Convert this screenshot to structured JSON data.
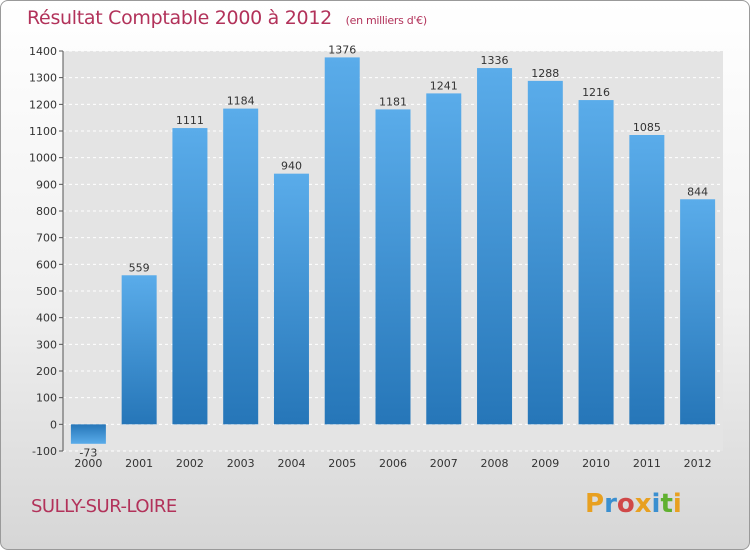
{
  "chart_data": {
    "type": "bar",
    "title": "Résultat Comptable 2000 à 2012",
    "subtitle": "(en milliers d'€)",
    "categories": [
      "2000",
      "2001",
      "2002",
      "2003",
      "2004",
      "2005",
      "2006",
      "2007",
      "2008",
      "2009",
      "2010",
      "2011",
      "2012"
    ],
    "values": [
      -73,
      559,
      1111,
      1184,
      940,
      1376,
      1181,
      1241,
      1336,
      1288,
      1216,
      1085,
      844
    ],
    "ylim": [
      -100,
      1400
    ],
    "yticks": [
      -100,
      0,
      100,
      200,
      300,
      400,
      500,
      600,
      700,
      800,
      900,
      1000,
      1100,
      1200,
      1300,
      1400
    ],
    "grid": true,
    "xlabel": "",
    "ylabel": ""
  },
  "footer": {
    "city": "SULLY-SUR-LOIRE",
    "logo": {
      "letters": [
        "P",
        "r",
        "o",
        "x",
        "i",
        "t",
        "i"
      ],
      "colors": [
        "#e8a020",
        "#3a8fd0",
        "#d04848",
        "#e8a020",
        "#3a8fd0",
        "#60b030",
        "#e8a020"
      ]
    }
  },
  "colors": {
    "title": "#b2325a",
    "bar_light": "#5aacea",
    "bar_dark": "#2676b8"
  }
}
